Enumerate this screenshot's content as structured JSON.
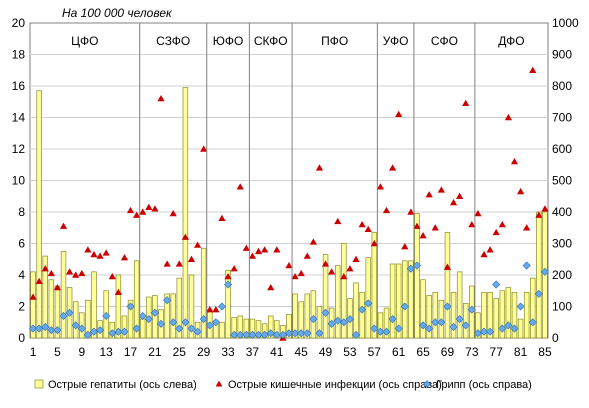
{
  "chart_data": {
    "type": "bar",
    "annotation": "На 100 000 человек",
    "x": [
      1,
      2,
      3,
      4,
      5,
      6,
      7,
      8,
      9,
      10,
      11,
      12,
      13,
      14,
      15,
      16,
      17,
      18,
      19,
      20,
      21,
      22,
      23,
      24,
      25,
      26,
      27,
      28,
      29,
      30,
      31,
      32,
      33,
      34,
      35,
      36,
      37,
      38,
      39,
      40,
      41,
      42,
      43,
      44,
      45,
      46,
      47,
      48,
      49,
      50,
      51,
      52,
      53,
      54,
      55,
      56,
      57,
      58,
      59,
      60,
      61,
      62,
      63,
      64,
      65,
      66,
      67,
      68,
      69,
      70,
      71,
      72,
      73,
      74,
      75,
      76,
      77,
      78,
      79,
      80,
      81,
      82,
      83,
      84,
      85
    ],
    "x_ticks": [
      "1",
      "5",
      "9",
      "13",
      "17",
      "21",
      "25",
      "29",
      "33",
      "37",
      "41",
      "45",
      "49",
      "53",
      "57",
      "61",
      "65",
      "69",
      "73",
      "77",
      "81",
      "85"
    ],
    "y_left": {
      "min": 0,
      "max": 20,
      "ticks": [
        "0",
        "2",
        "4",
        "6",
        "8",
        "10",
        "12",
        "14",
        "16",
        "18",
        "20"
      ]
    },
    "y_right": {
      "min": 0,
      "max": 1000,
      "ticks": [
        "0",
        "100",
        "200",
        "300",
        "400",
        "500",
        "600",
        "700",
        "800",
        "900",
        "1000"
      ]
    },
    "regions": [
      {
        "label": "ЦФО",
        "start": 1,
        "end": 18
      },
      {
        "label": "СЗФО",
        "start": 19,
        "end": 29
      },
      {
        "label": "ЮФО",
        "start": 30,
        "end": 36
      },
      {
        "label": "СКФО",
        "start": 37,
        "end": 43
      },
      {
        "label": "ПФО",
        "start": 44,
        "end": 57
      },
      {
        "label": "УФО",
        "start": 58,
        "end": 63
      },
      {
        "label": "СФО",
        "start": 64,
        "end": 73
      },
      {
        "label": "ДФО",
        "start": 74,
        "end": 85
      }
    ],
    "series": [
      {
        "name": "Острые гепатиты (ось слева)",
        "axis": "left",
        "color": "#ffff99",
        "stroke": "#8a8a2a",
        "values": [
          4.2,
          15.7,
          5.2,
          3.7,
          3.3,
          5.5,
          3.2,
          2.3,
          1.6,
          2.4,
          4.2,
          1.1,
          3.0,
          1.0,
          4.0,
          1.4,
          2.4,
          4.9,
          1.2,
          2.6,
          2.7,
          1.8,
          2.8,
          2.8,
          3.8,
          15.9,
          4.0,
          1.0,
          5.7,
          1.8,
          1.1,
          1.0,
          4.3,
          1.3,
          1.4,
          1.2,
          1.2,
          1.1,
          0.9,
          1.4,
          1.1,
          0.8,
          1.5,
          2.8,
          2.3,
          2.8,
          3.0,
          2.0,
          5.3,
          1.9,
          4.6,
          6.0,
          2.5,
          3.5,
          2.9,
          5.1,
          6.7,
          1.6,
          1.9,
          4.7,
          4.7,
          4.9,
          4.9,
          7.9,
          3.7,
          2.7,
          2.9,
          2.4,
          6.7,
          2.9,
          4.2,
          2.2,
          3.3,
          1.6,
          2.9,
          2.9,
          2.5,
          3.0,
          3.2,
          2.9,
          1.2,
          2.9,
          3.8,
          8.0,
          8.0
        ]
      },
      {
        "name": "Острые кишечные инфекции (ось справа)",
        "axis": "right",
        "color": "#cc0000",
        "values": [
          130,
          180,
          220,
          205,
          160,
          355,
          210,
          200,
          205,
          280,
          265,
          260,
          270,
          195,
          145,
          255,
          405,
          390,
          400,
          415,
          410,
          760,
          235,
          395,
          235,
          320,
          250,
          295,
          600,
          90,
          90,
          380,
          195,
          220,
          480,
          285,
          260,
          275,
          280,
          160,
          280,
          0,
          230,
          195,
          205,
          260,
          305,
          540,
          235,
          210,
          370,
          195,
          220,
          250,
          360,
          345,
          300,
          480,
          405,
          540,
          710,
          290,
          400,
          355,
          325,
          455,
          350,
          470,
          225,
          430,
          450,
          745,
          360,
          395,
          265,
          280,
          335,
          360,
          700,
          560,
          465,
          350,
          850,
          390,
          410
        ]
      },
      {
        "name": "Грипп (ось справа)",
        "axis": "right",
        "color": "#66aaee",
        "values": [
          30,
          30,
          35,
          25,
          25,
          70,
          80,
          40,
          30,
          10,
          20,
          25,
          70,
          15,
          20,
          20,
          100,
          30,
          70,
          60,
          80,
          45,
          120,
          50,
          30,
          50,
          30,
          20,
          60,
          40,
          50,
          100,
          170,
          10,
          10,
          10,
          10,
          10,
          10,
          15,
          10,
          10,
          15,
          15,
          15,
          15,
          60,
          15,
          80,
          45,
          55,
          50,
          60,
          10,
          90,
          110,
          30,
          20,
          20,
          60,
          30,
          100,
          220,
          230,
          40,
          30,
          50,
          50,
          100,
          35,
          60,
          40,
          90,
          15,
          20,
          20,
          170,
          30,
          40,
          30,
          100,
          230,
          50,
          140,
          210
        ]
      }
    ]
  }
}
